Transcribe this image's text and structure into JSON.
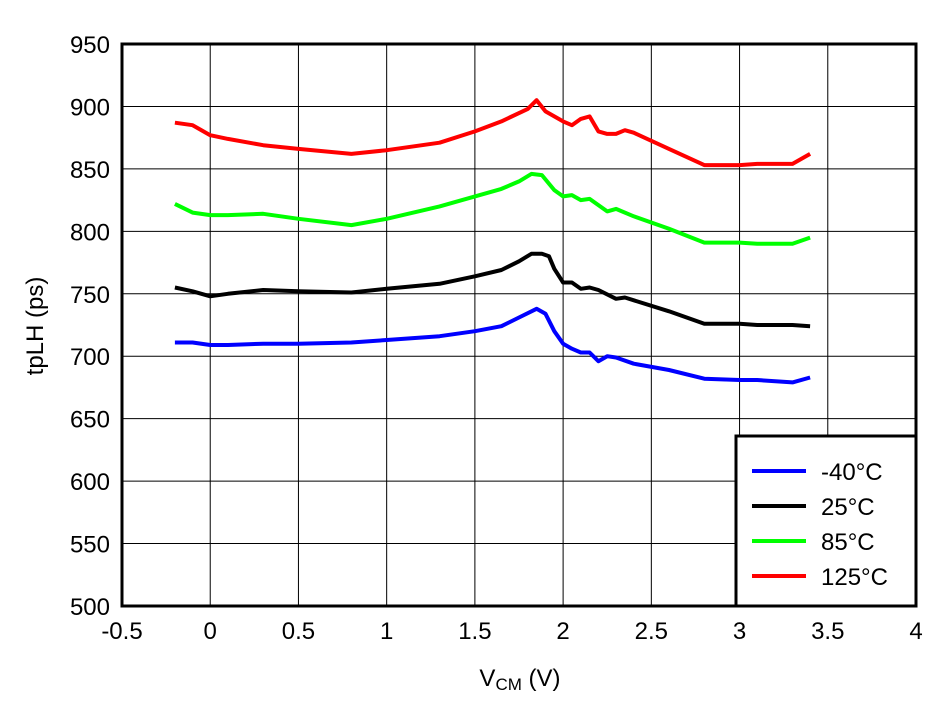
{
  "chart_data": {
    "type": "line",
    "title": "",
    "xlabel": "V",
    "xlabel_subscript": "CM",
    "xlabel_unit": " (V)",
    "ylabel": "tpLH (ps)",
    "xlim": [
      -0.5,
      4
    ],
    "ylim": [
      500,
      950
    ],
    "x_ticks": [
      -0.5,
      0,
      0.5,
      1,
      1.5,
      2,
      2.5,
      3,
      3.5,
      4
    ],
    "x_tick_labels": [
      "-0.5",
      "0",
      "0.5",
      "1",
      "1.5",
      "2",
      "2.5",
      "3",
      "3.5",
      "4"
    ],
    "y_ticks": [
      500,
      550,
      600,
      650,
      700,
      750,
      800,
      850,
      900,
      950
    ],
    "y_tick_labels": [
      "500",
      "550",
      "600",
      "650",
      "700",
      "750",
      "800",
      "850",
      "900",
      "950"
    ],
    "grid": true,
    "legend_position": "bottom-right",
    "series": [
      {
        "name": "-40°C",
        "color": "#0000ff",
        "points": [
          [
            -0.2,
            711
          ],
          [
            -0.1,
            711
          ],
          [
            0,
            709
          ],
          [
            0.1,
            709
          ],
          [
            0.3,
            710
          ],
          [
            0.5,
            710
          ],
          [
            0.8,
            711
          ],
          [
            1.0,
            713
          ],
          [
            1.3,
            716
          ],
          [
            1.5,
            720
          ],
          [
            1.65,
            724
          ],
          [
            1.75,
            731
          ],
          [
            1.85,
            738
          ],
          [
            1.9,
            734
          ],
          [
            1.95,
            720
          ],
          [
            2.0,
            710
          ],
          [
            2.05,
            706
          ],
          [
            2.1,
            703
          ],
          [
            2.15,
            703
          ],
          [
            2.2,
            696
          ],
          [
            2.25,
            700
          ],
          [
            2.3,
            699
          ],
          [
            2.4,
            694
          ],
          [
            2.6,
            689
          ],
          [
            2.8,
            682
          ],
          [
            3.0,
            681
          ],
          [
            3.1,
            681
          ],
          [
            3.3,
            679
          ],
          [
            3.4,
            683
          ]
        ]
      },
      {
        "name": "25°C",
        "color": "#000000",
        "points": [
          [
            -0.2,
            755
          ],
          [
            -0.1,
            752
          ],
          [
            0,
            748
          ],
          [
            0.1,
            750
          ],
          [
            0.3,
            753
          ],
          [
            0.5,
            752
          ],
          [
            0.8,
            751
          ],
          [
            1.0,
            754
          ],
          [
            1.3,
            758
          ],
          [
            1.5,
            764
          ],
          [
            1.65,
            769
          ],
          [
            1.75,
            776
          ],
          [
            1.82,
            782
          ],
          [
            1.88,
            782
          ],
          [
            1.92,
            780
          ],
          [
            1.95,
            770
          ],
          [
            2.0,
            759
          ],
          [
            2.05,
            759
          ],
          [
            2.1,
            754
          ],
          [
            2.15,
            755
          ],
          [
            2.2,
            753
          ],
          [
            2.3,
            746
          ],
          [
            2.35,
            747
          ],
          [
            2.6,
            736
          ],
          [
            2.8,
            726
          ],
          [
            3.0,
            726
          ],
          [
            3.1,
            725
          ],
          [
            3.3,
            725
          ],
          [
            3.4,
            724
          ]
        ]
      },
      {
        "name": "85°C",
        "color": "#00ff00",
        "points": [
          [
            -0.2,
            822
          ],
          [
            -0.1,
            815
          ],
          [
            0,
            813
          ],
          [
            0.1,
            813
          ],
          [
            0.3,
            814
          ],
          [
            0.5,
            810
          ],
          [
            0.8,
            805
          ],
          [
            1.0,
            810
          ],
          [
            1.3,
            820
          ],
          [
            1.5,
            828
          ],
          [
            1.65,
            834
          ],
          [
            1.75,
            840
          ],
          [
            1.82,
            846
          ],
          [
            1.88,
            845
          ],
          [
            1.95,
            833
          ],
          [
            2.0,
            828
          ],
          [
            2.05,
            829
          ],
          [
            2.1,
            825
          ],
          [
            2.15,
            826
          ],
          [
            2.2,
            821
          ],
          [
            2.25,
            816
          ],
          [
            2.3,
            818
          ],
          [
            2.4,
            812
          ],
          [
            2.6,
            802
          ],
          [
            2.8,
            791
          ],
          [
            3.0,
            791
          ],
          [
            3.1,
            790
          ],
          [
            3.3,
            790
          ],
          [
            3.4,
            795
          ]
        ]
      },
      {
        "name": "125°C",
        "color": "#ff0000",
        "points": [
          [
            -0.2,
            887
          ],
          [
            -0.1,
            885
          ],
          [
            0,
            877
          ],
          [
            0.1,
            874
          ],
          [
            0.3,
            869
          ],
          [
            0.5,
            866
          ],
          [
            0.8,
            862
          ],
          [
            1.0,
            865
          ],
          [
            1.3,
            871
          ],
          [
            1.5,
            880
          ],
          [
            1.65,
            888
          ],
          [
            1.8,
            898
          ],
          [
            1.85,
            905
          ],
          [
            1.9,
            896
          ],
          [
            2.0,
            888
          ],
          [
            2.05,
            885
          ],
          [
            2.1,
            890
          ],
          [
            2.15,
            892
          ],
          [
            2.2,
            880
          ],
          [
            2.25,
            878
          ],
          [
            2.3,
            878
          ],
          [
            2.35,
            881
          ],
          [
            2.4,
            879
          ],
          [
            2.6,
            866
          ],
          [
            2.8,
            853
          ],
          [
            3.0,
            853
          ],
          [
            3.1,
            854
          ],
          [
            3.3,
            854
          ],
          [
            3.4,
            862
          ]
        ]
      }
    ]
  }
}
